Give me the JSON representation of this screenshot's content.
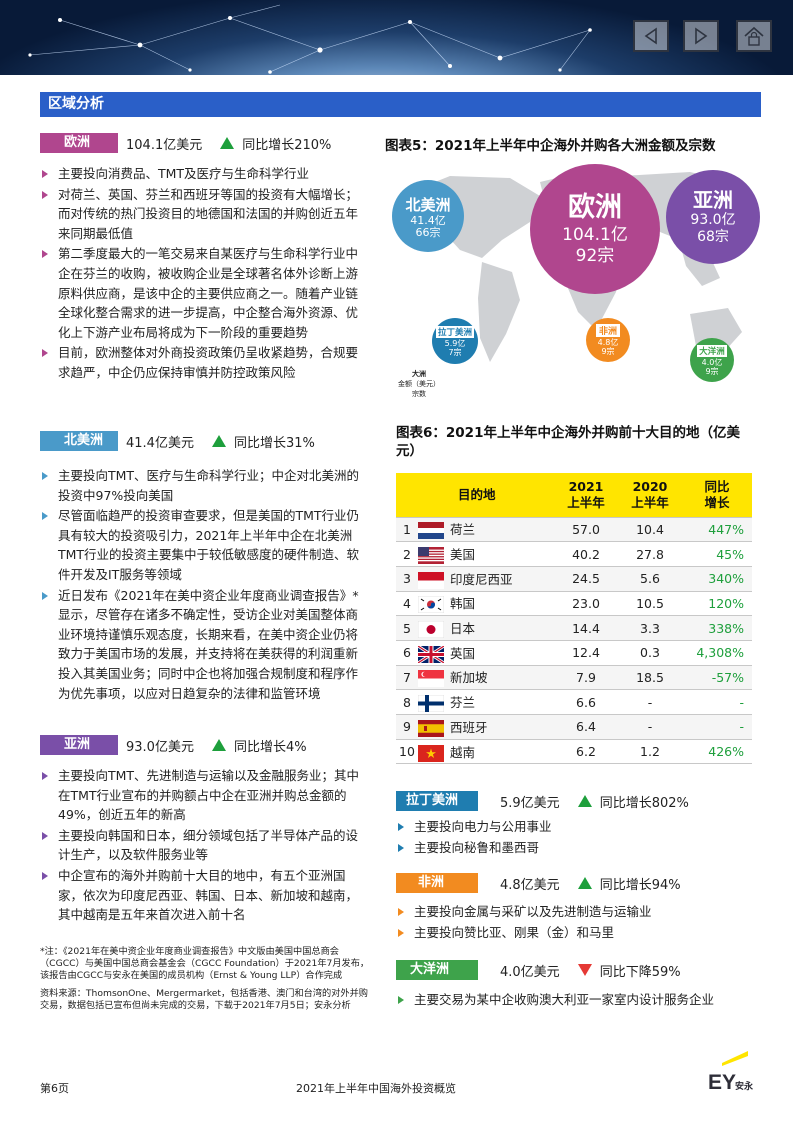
{
  "nav": {
    "prev_icon": "chevron-left-icon",
    "next_icon": "chevron-right-icon",
    "lock_icon": "home-lock-icon"
  },
  "section_title": "区域分析",
  "regions": {
    "europe": {
      "name": "欧洲",
      "amount": "104.1亿美元",
      "change": "同比增长210%",
      "direction": "up",
      "color": "#b0468e",
      "bullets": [
        "主要投向消费品、TMT及医疗与生命科学行业",
        "对荷兰、英国、芬兰和西班牙等国的投资有大幅增长；而对传统的热门投资目的地德国和法国的并购创近五年来同期最低值",
        "第二季度最大的一笔交易来自某医疗与生命科学行业中企在芬兰的收购，被收购企业是全球著名体外诊断上游原料供应商，是该中企的主要供应商之一。随着产业链全球化整合需求的进一步提高，中企整合海外资源、优化上下游产业布局将成为下一阶段的重要趋势",
        "目前，欧洲整体对外商投资政策仍呈收紧趋势，合规要求趋严，中企仍应保持审慎并防控政策风险"
      ]
    },
    "north_america": {
      "name": "北美洲",
      "amount": "41.4亿美元",
      "change": "同比增长31%",
      "direction": "up",
      "color": "#4a9ac9",
      "bullets": [
        "主要投向TMT、医疗与生命科学行业；中企对北美洲的投资中97%投向美国",
        "尽管面临趋严的投资审查要求，但是美国的TMT行业仍具有较大的投资吸引力，2021年上半年中企在北美洲TMT行业的投资主要集中于较低敏感度的硬件制造、软件开发及IT服务等领域",
        "近日发布《2021年在美中资企业年度商业调查报告》*显示，尽管存在诸多不确定性，受访企业对美国整体商业环境持谨慎乐观态度，长期来看，在美中资企业仍将致力于美国市场的发展，并支持将在美获得的利润重新投入其美国业务；同时中企也将加强合规制度和程序作为优先事项，以应对日趋复杂的法律和监管环境"
      ]
    },
    "asia": {
      "name": "亚洲",
      "amount": "93.0亿美元",
      "change": "同比增长4%",
      "direction": "up",
      "color": "#7a4fa8",
      "bullets": [
        "主要投向TMT、先进制造与运输以及金融服务业；其中在TMT行业宣布的并购额占中企在亚洲并购总金额的49%，创近五年的新高",
        "主要投向韩国和日本，细分领域包括了半导体产品的设计生产，以及软件服务业等",
        "中企宣布的海外并购前十大目的地中，有五个亚洲国家，依次为印度尼西亚、韩国、日本、新加坡和越南，其中越南是五年来首次进入前十名"
      ]
    },
    "latin_america": {
      "name": "拉丁美洲",
      "amount": "5.9亿美元",
      "change": "同比增长802%",
      "direction": "up",
      "color": "#1f7db0",
      "bullets": [
        "主要投向电力与公用事业",
        "主要投向秘鲁和墨西哥"
      ]
    },
    "africa": {
      "name": "非洲",
      "amount": "4.8亿美元",
      "change": "同比增长94%",
      "direction": "up",
      "color": "#f28b20",
      "bullets": [
        "主要投向金属与采矿以及先进制造与运输业",
        "主要投向赞比亚、刚果（金）和马里"
      ]
    },
    "oceania": {
      "name": "大洋洲",
      "amount": "4.0亿美元",
      "change": "同比下降59%",
      "direction": "down",
      "color": "#3ea34b",
      "bullets": [
        "主要交易为某中企收购澳大利亚一家室内设计服务企业"
      ]
    }
  },
  "chart5": {
    "title": "图表5：2021年上半年中企海外并购各大洲金额及宗数",
    "bubbles": [
      {
        "name": "欧洲",
        "amount": "104.1亿",
        "deals": "92宗",
        "color": "#b0468e"
      },
      {
        "name": "北美洲",
        "amount": "41.4亿",
        "deals": "66宗",
        "color": "#4a9ac9"
      },
      {
        "name": "亚洲",
        "amount": "93.0亿",
        "deals": "68宗",
        "color": "#7a4fa8"
      },
      {
        "name": "拉丁美洲",
        "amount": "5.9亿",
        "deals": "7宗",
        "color": "#1f7db0"
      },
      {
        "name": "非洲",
        "amount": "4.8亿",
        "deals": "9宗",
        "color": "#f28b20"
      },
      {
        "name": "大洋洲",
        "amount": "4.0亿",
        "deals": "9宗",
        "color": "#3ea34b"
      }
    ],
    "legend": {
      "name": "大洲",
      "amount": "金额（美元）",
      "deals": "宗数"
    }
  },
  "chart6": {
    "title": "图表6：2021年上半年中企海外并购前十大目的地（亿美元）",
    "headers": {
      "dest": "目的地",
      "y2021a": "2021",
      "y2021b": "上半年",
      "y2020a": "2020",
      "y2020b": "上半年",
      "chg_a": "同比",
      "chg_b": "增长"
    },
    "rows": [
      {
        "rank": "1",
        "country": "荷兰",
        "flag": "flag-netherlands-icon",
        "v2021": "57.0",
        "v2020": "10.4",
        "growth": "447%"
      },
      {
        "rank": "2",
        "country": "美国",
        "flag": "flag-usa-icon",
        "v2021": "40.2",
        "v2020": "27.8",
        "growth": "45%"
      },
      {
        "rank": "3",
        "country": "印度尼西亚",
        "flag": "flag-indonesia-icon",
        "v2021": "24.5",
        "v2020": "5.6",
        "growth": "340%"
      },
      {
        "rank": "4",
        "country": "韩国",
        "flag": "flag-south-korea-icon",
        "v2021": "23.0",
        "v2020": "10.5",
        "growth": "120%"
      },
      {
        "rank": "5",
        "country": "日本",
        "flag": "flag-japan-icon",
        "v2021": "14.4",
        "v2020": "3.3",
        "growth": "338%"
      },
      {
        "rank": "6",
        "country": "英国",
        "flag": "flag-uk-icon",
        "v2021": "12.4",
        "v2020": "0.3",
        "growth": "4,308%"
      },
      {
        "rank": "7",
        "country": "新加坡",
        "flag": "flag-singapore-icon",
        "v2021": "7.9",
        "v2020": "18.5",
        "growth": "-57%"
      },
      {
        "rank": "8",
        "country": "芬兰",
        "flag": "flag-finland-icon",
        "v2021": "6.6",
        "v2020": "-",
        "growth": "-"
      },
      {
        "rank": "9",
        "country": "西班牙",
        "flag": "flag-spain-icon",
        "v2021": "6.4",
        "v2020": "-",
        "growth": "-"
      },
      {
        "rank": "10",
        "country": "越南",
        "flag": "flag-vietnam-icon",
        "v2021": "6.2",
        "v2020": "1.2",
        "growth": "426%"
      }
    ]
  },
  "notes": {
    "footnote": "*注：《2021年在美中资企业年度商业调查报告》中文版由美国中国总商会（CGCC）与美国中国总商会基金会（CGCC Foundation）于2021年7月发布，该报告由CGCC与安永在美国的成员机构（Ernst & Young LLP）合作完成",
    "source": "资料来源：ThomsonOne、Mergermarket，包括香港、澳门和台湾的对外并购交易，数据包括已宣布但尚未完成的交易，下载于2021年7月5日；安永分析"
  },
  "footer": {
    "page": "第6页",
    "title": "2021年上半年中国海外投资概览",
    "logo_text": "EY",
    "logo_sub": "安永"
  }
}
